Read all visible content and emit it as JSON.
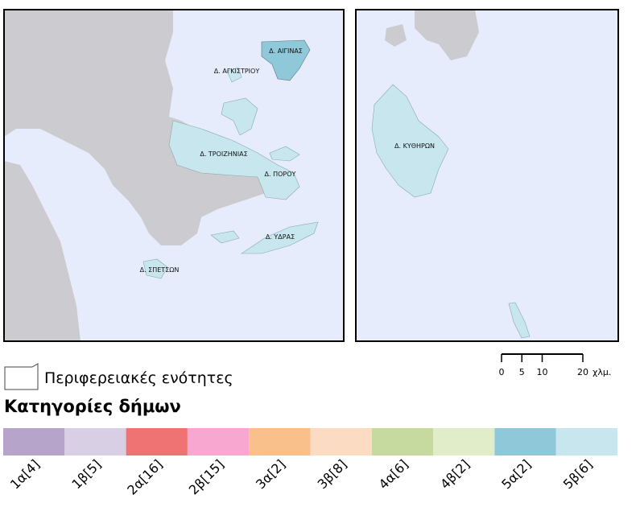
{
  "map_labels": [
    "Δ. ΑΙΓΙΝΑΣ",
    "Δ. ΑΓΚΙΣΤΡΙΟΥ",
    "Δ. ΤΡΟΙΖΗΝΙΑΣ",
    "Δ. ΠΟΡΟΥ",
    "Δ. ΥΔΡΑΣ",
    "Δ. ΣΠΕΤΣΩΝ",
    "Δ. ΚΥΘΗΡΩΝ"
  ],
  "scale": {
    "ticks": [
      0,
      5,
      10,
      20
    ],
    "unit": "χλμ."
  },
  "legend": {
    "boundary_label": "Περιφερειακές ενότητες",
    "title": "Κατηγορίες δήμων",
    "items": [
      {
        "label": "1α[4]",
        "color": "#b7a4cb"
      },
      {
        "label": "1β[5]",
        "color": "#d8cfe5"
      },
      {
        "label": "2α[16]",
        "color": "#f07373"
      },
      {
        "label": "2β[15]",
        "color": "#f8a8d0"
      },
      {
        "label": "3α[2]",
        "color": "#f9c08c"
      },
      {
        "label": "3β[8]",
        "color": "#fbdcc2"
      },
      {
        "label": "4α[6]",
        "color": "#c6da9f"
      },
      {
        "label": "4β[2]",
        "color": "#e1ecc9"
      },
      {
        "label": "5α[2]",
        "color": "#8ec8d9"
      },
      {
        "label": "5β[6]",
        "color": "#c8e6ee"
      }
    ]
  }
}
